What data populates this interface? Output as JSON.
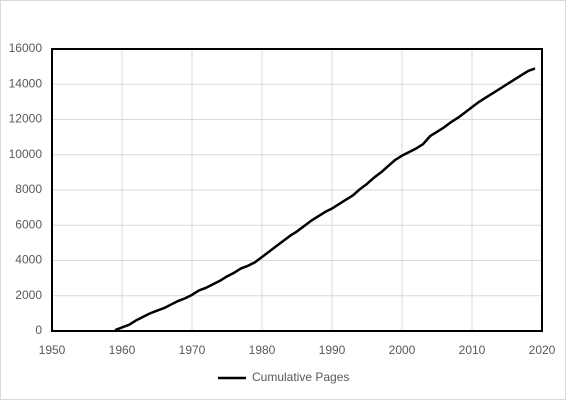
{
  "chart_data": {
    "type": "line",
    "x": [
      1959,
      1960,
      1961,
      1962,
      1963,
      1964,
      1965,
      1966,
      1967,
      1968,
      1969,
      1970,
      1971,
      1972,
      1973,
      1974,
      1975,
      1976,
      1977,
      1978,
      1979,
      1980,
      1981,
      1982,
      1983,
      1984,
      1985,
      1986,
      1987,
      1988,
      1989,
      1990,
      1991,
      1992,
      1993,
      1994,
      1995,
      1996,
      1997,
      1998,
      1999,
      2000,
      2001,
      2002,
      2003,
      2004,
      2005,
      2006,
      2007,
      2008,
      2009,
      2010,
      2011,
      2012,
      2013,
      2014,
      2015,
      2016,
      2017,
      2018,
      2019
    ],
    "series": [
      {
        "name": "Cumulative Pages",
        "color": "#000000",
        "values": [
          50,
          200,
          350,
          600,
          800,
          1000,
          1150,
          1300,
          1500,
          1700,
          1850,
          2050,
          2300,
          2450,
          2650,
          2850,
          3100,
          3300,
          3550,
          3700,
          3900,
          4200,
          4500,
          4800,
          5100,
          5400,
          5650,
          5950,
          6250,
          6500,
          6750,
          6950,
          7200,
          7450,
          7700,
          8050,
          8350,
          8700,
          9000,
          9350,
          9700,
          9950,
          10150,
          10350,
          10600,
          11050,
          11300,
          11550,
          11850,
          12100,
          12400,
          12700,
          13000,
          13250,
          13500,
          13750,
          14000,
          14250,
          14500,
          14750,
          14900
        ]
      }
    ],
    "xlim": [
      1950,
      2020
    ],
    "xticks": [
      1950,
      1960,
      1970,
      1980,
      1990,
      2000,
      2010,
      2020
    ],
    "ylim": [
      0,
      16000
    ],
    "yticks": [
      0,
      2000,
      4000,
      6000,
      8000,
      10000,
      12000,
      14000,
      16000
    ],
    "grid": true,
    "legend": "bottom"
  }
}
